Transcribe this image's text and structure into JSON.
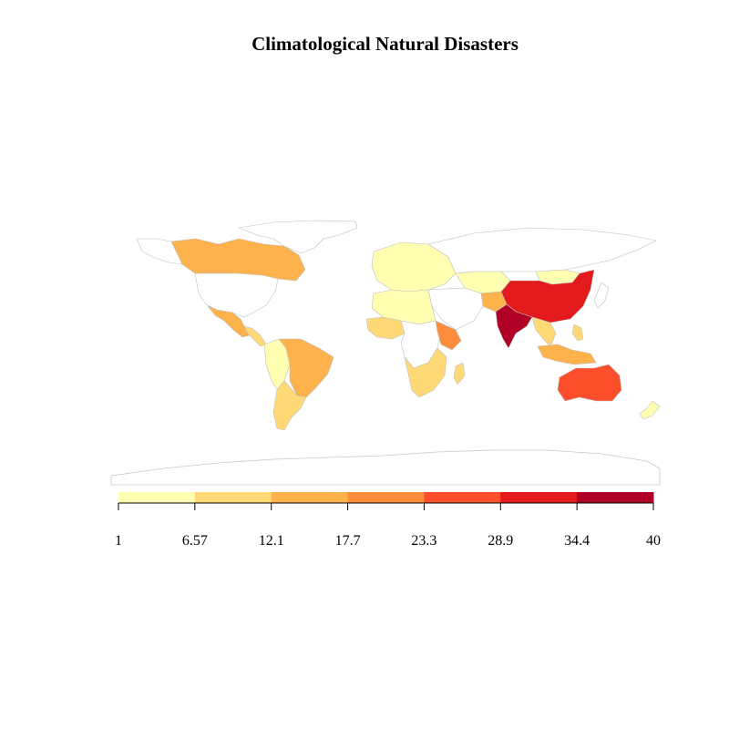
{
  "title": "Climatological Natural Disasters",
  "legend": {
    "breaks": [
      "1",
      "6.57",
      "12.1",
      "17.7",
      "23.3",
      "28.9",
      "34.4",
      "40"
    ],
    "colors": [
      "#ffffb2",
      "#fed976",
      "#feb24c",
      "#fd8d3c",
      "#fc4e2a",
      "#e31a1c",
      "#b10026"
    ]
  },
  "regions": {
    "canada": "#feb24c",
    "usa": "#ffffff",
    "mexico": "#feb24c",
    "central_america": "#fed976",
    "brazil": "#feb24c",
    "argentina": "#fed976",
    "andes": "#ffffb2",
    "russia": "#ffffff",
    "europe": "#ffffb2",
    "north_africa": "#ffffb2",
    "west_africa": "#fed976",
    "central_africa": "#ffffff",
    "ethiopia": "#fd8d3c",
    "southern_africa": "#fed976",
    "china": "#e31a1c",
    "india": "#b10026",
    "afghanistan": "#feb24c",
    "mongolia": "#ffffb2",
    "kazakhstan": "#ffffb2",
    "southeast_asia": "#fed976",
    "indonesia": "#feb24c",
    "philippines": "#fed976",
    "australia": "#fc4e2a",
    "new_zealand": "#ffffb2",
    "greenland": "#ffffff",
    "antarctica": "#ffffff",
    "madagascar": "#fed976"
  }
}
